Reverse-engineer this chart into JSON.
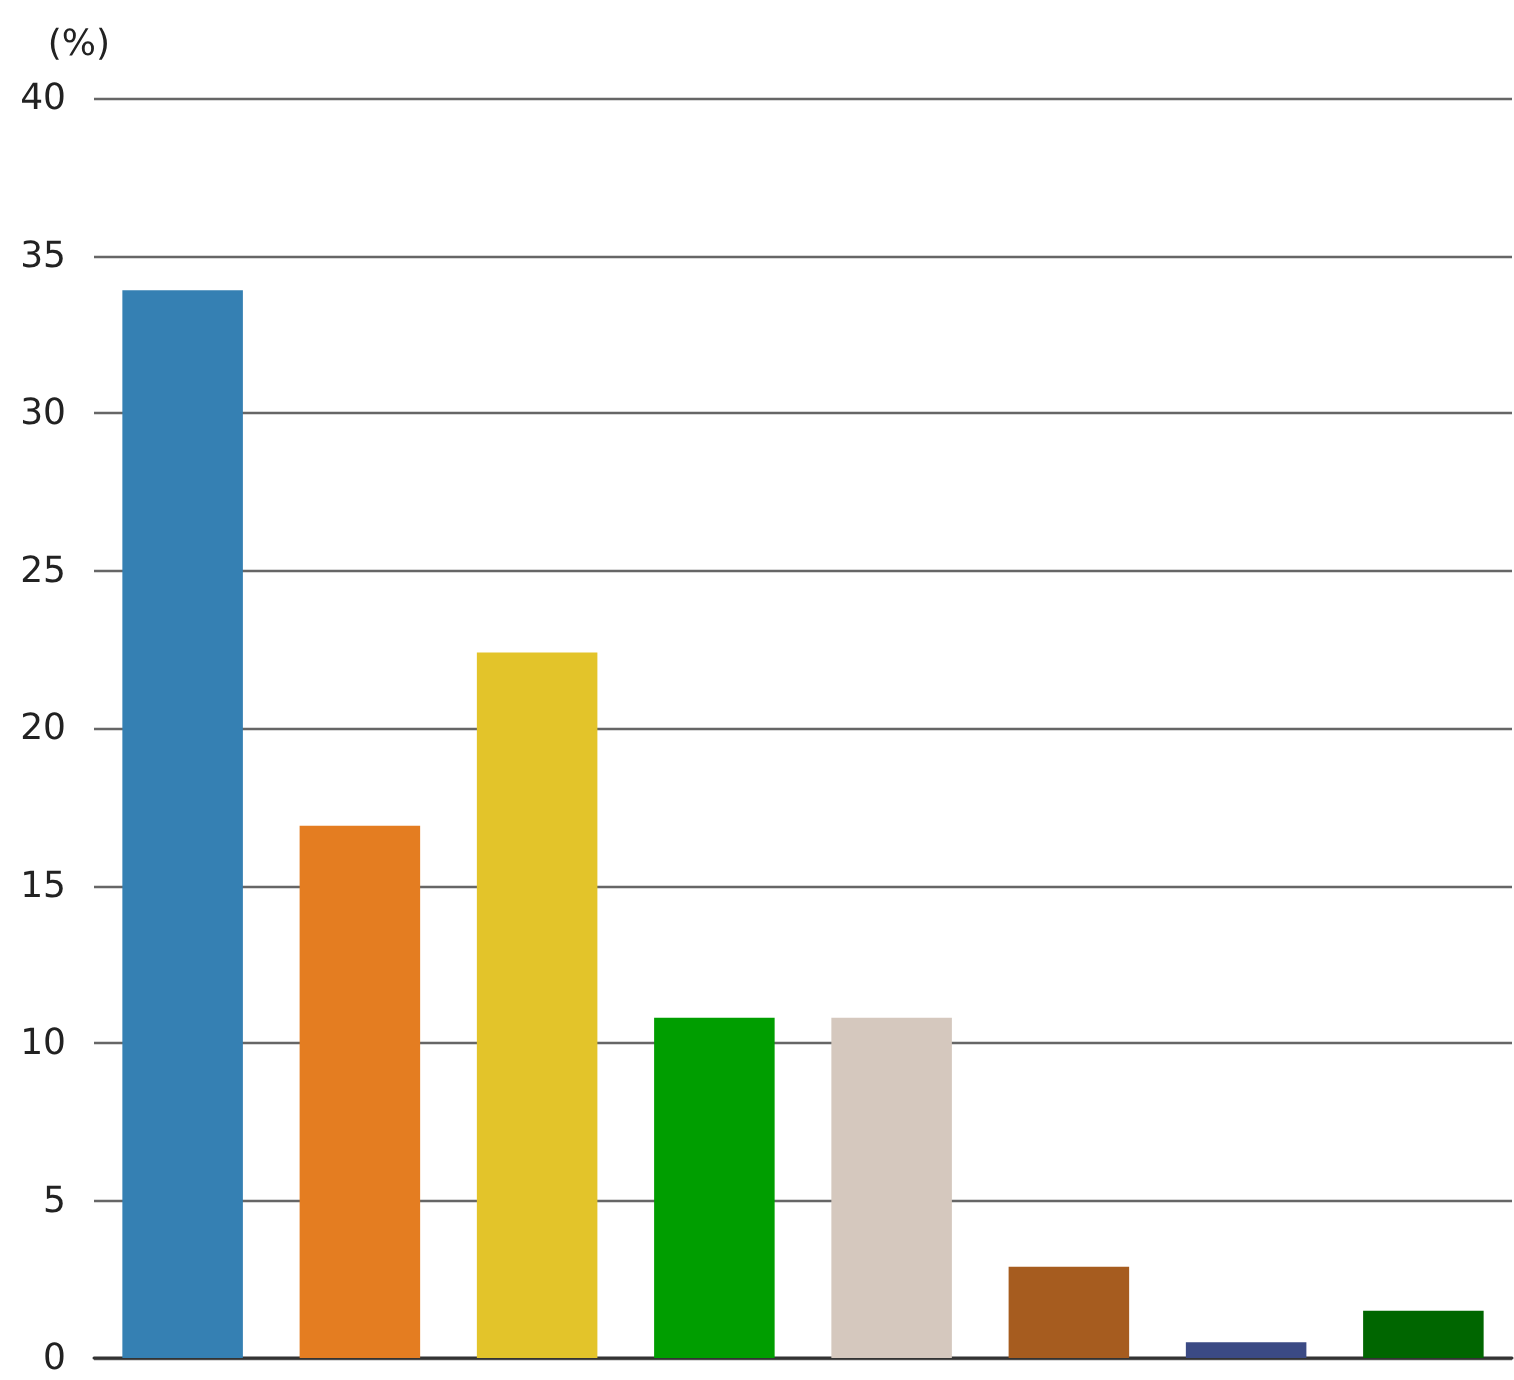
{
  "chart_data": {
    "type": "bar",
    "ylabel": "(%)",
    "categories": [
      null,
      null,
      null,
      null,
      null,
      null,
      null,
      null
    ],
    "values": [
      33.9,
      16.9,
      22.4,
      10.8,
      10.8,
      2.9,
      0.5,
      1.5
    ],
    "colors": [
      "#3580b3",
      "#e47d21",
      "#e3c42a",
      "#009e00",
      "#d5c8be",
      "#a65c1f",
      "#3b4a84",
      "#006600"
    ],
    "ylim": [
      0,
      40
    ],
    "yticks": [
      0,
      5,
      10,
      15,
      20,
      25,
      30,
      35,
      40
    ],
    "grid": "y",
    "tick_labels": "y"
  }
}
